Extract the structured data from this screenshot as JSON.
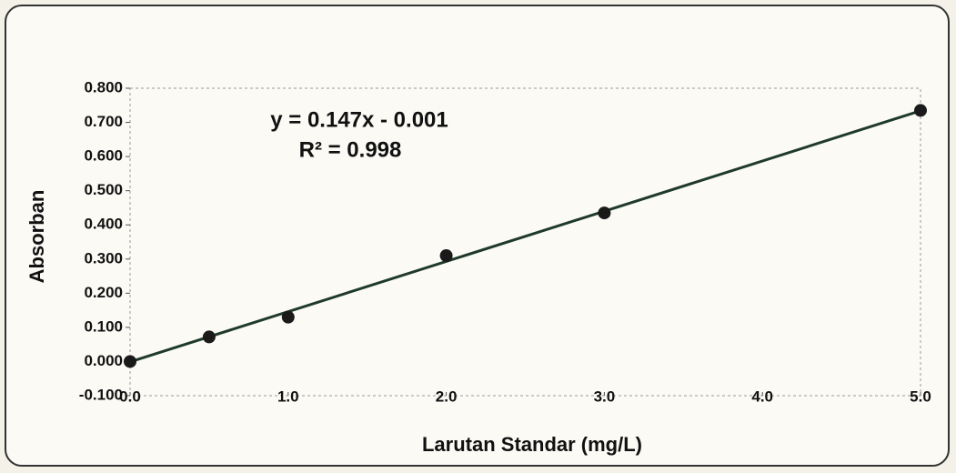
{
  "chart_data": {
    "type": "scatter",
    "x_label": "Larutan Standar (mg/L)",
    "y_label": "Absorban",
    "x": [
      0,
      0.5,
      1.0,
      2.0,
      3.0,
      5.0
    ],
    "values": [
      0.0,
      0.072,
      0.13,
      0.31,
      0.435,
      0.735
    ],
    "color": "#1a1a1a",
    "xlim": [
      0,
      5
    ],
    "ylim": [
      -0.1,
      0.8
    ],
    "xticks": [
      {
        "value": 0,
        "label": "0.0"
      },
      {
        "value": 1,
        "label": "1.0"
      },
      {
        "value": 2,
        "label": "2.0"
      },
      {
        "value": 3,
        "label": "3.0"
      },
      {
        "value": 4,
        "label": "4.0"
      },
      {
        "value": 5,
        "label": "5.0"
      }
    ],
    "yticks": [
      {
        "value": -0.1,
        "label": "-0.100"
      },
      {
        "value": 0,
        "label": "0.000"
      },
      {
        "value": 0.1,
        "label": "0.100"
      },
      {
        "value": 0.2,
        "label": "0.200"
      },
      {
        "value": 0.3,
        "label": "0.300"
      },
      {
        "value": 0.4,
        "label": "0.400"
      },
      {
        "value": 0.5,
        "label": "0.500"
      },
      {
        "value": 0.6,
        "label": "0.600"
      },
      {
        "value": 0.7,
        "label": "0.700"
      },
      {
        "value": 0.8,
        "label": "0.800"
      }
    ],
    "trendline": {
      "slope": 0.147,
      "intercept": -0.001,
      "color": "#1f3a2a",
      "equation": "y = 0.147x - 0.001",
      "r_squared": "R² = 0.998"
    }
  }
}
